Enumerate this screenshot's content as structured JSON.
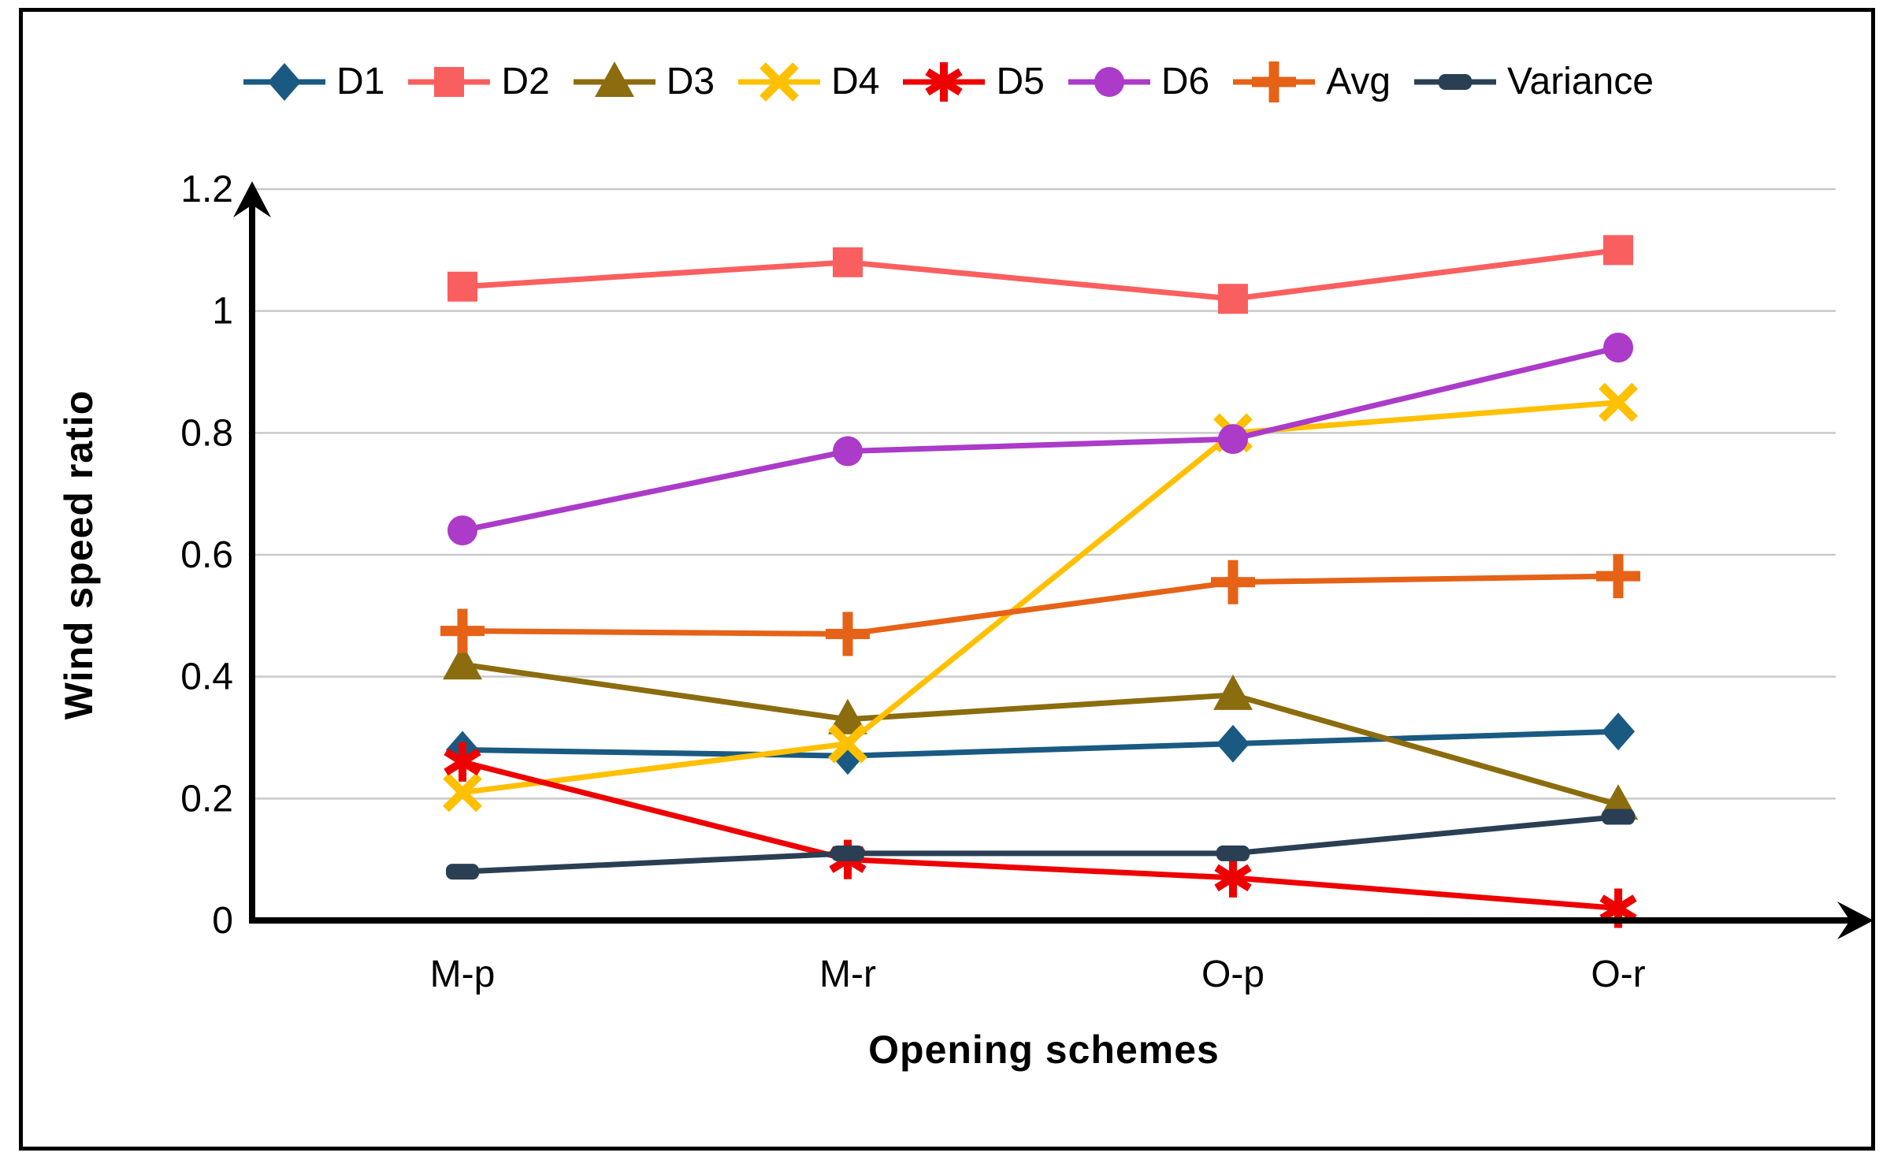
{
  "frame": {
    "background": "#FFFFFF",
    "border_color": "#000000"
  },
  "chart_data": {
    "type": "line",
    "title": "",
    "categories": [
      "M-p",
      "M-r",
      "O-p",
      "O-r"
    ],
    "xlabel": "Opening schemes",
    "ylabel": "Wind speed ratio",
    "ylim": [
      0,
      1.2
    ],
    "ytick_step": 0.2,
    "ytick_values": [
      0,
      0.2,
      0.4,
      0.6,
      0.8,
      1.0,
      1.2
    ],
    "ytick_labels": [
      "0",
      "0.2",
      "0.4",
      "0.6",
      "0.8",
      "1",
      "1.2"
    ],
    "grid": true,
    "gridline_color": "#C9C9C9",
    "axis_color": "#000000",
    "legend_position": "top",
    "series": [
      {
        "name": "D1",
        "marker": "diamond",
        "color": "#1A5A82",
        "values": [
          0.28,
          0.27,
          0.29,
          0.31
        ]
      },
      {
        "name": "D2",
        "marker": "square",
        "color": "#FA5F5F",
        "values": [
          1.04,
          1.08,
          1.02,
          1.1
        ]
      },
      {
        "name": "D3",
        "marker": "triangle",
        "color": "#8B6C0E",
        "values": [
          0.42,
          0.33,
          0.37,
          0.19
        ]
      },
      {
        "name": "D4",
        "marker": "x",
        "color": "#FFC000",
        "values": [
          0.21,
          0.29,
          0.8,
          0.85
        ]
      },
      {
        "name": "D5",
        "marker": "asterisk",
        "color": "#EE0000",
        "values": [
          0.26,
          0.1,
          0.07,
          0.02
        ]
      },
      {
        "name": "D6",
        "marker": "circle",
        "color": "#AB3BC8",
        "values": [
          0.64,
          0.77,
          0.79,
          0.94
        ]
      },
      {
        "name": "Avg",
        "marker": "plus",
        "color": "#E56217",
        "values": [
          0.475,
          0.47,
          0.555,
          0.565
        ]
      },
      {
        "name": "Variance",
        "marker": "dash",
        "color": "#2B3F54",
        "values": [
          0.08,
          0.11,
          0.11,
          0.17
        ]
      }
    ]
  }
}
